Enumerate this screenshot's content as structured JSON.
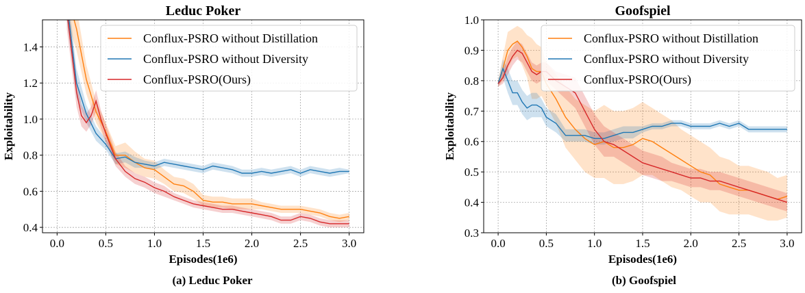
{
  "captions": [
    "(a) Leduc Poker",
    "(b) Goofspiel"
  ],
  "colors": {
    "orange": "#ff7f0e",
    "blue": "#1f77b4",
    "red": "#d62728"
  },
  "chart_data": [
    {
      "type": "line",
      "title": "Leduc Poker",
      "xlabel": "Episodes(1e6)",
      "ylabel": "Exploitability",
      "xlim": [
        -0.15,
        3.15
      ],
      "ylim": [
        0.37,
        1.55
      ],
      "xticks": [
        "0.0",
        "0.5",
        "1.0",
        "1.5",
        "2.0",
        "2.5",
        "3.0"
      ],
      "yticks": [
        "0.4",
        "0.6",
        "0.8",
        "1.0",
        "1.2",
        "1.4"
      ],
      "grid": true,
      "legend_position": "top-right",
      "series": [
        {
          "name": "Conflux-PSRO without Distillation",
          "color": "#ff7f0e",
          "x": [
            0.1,
            0.2,
            0.3,
            0.4,
            0.5,
            0.6,
            0.7,
            0.8,
            0.9,
            1.0,
            1.1,
            1.2,
            1.3,
            1.4,
            1.5,
            1.6,
            1.7,
            1.8,
            1.9,
            2.0,
            2.1,
            2.2,
            2.3,
            2.4,
            2.5,
            2.6,
            2.7,
            2.8,
            2.9,
            3.0
          ],
          "y": [
            1.7,
            1.5,
            1.22,
            1.04,
            0.93,
            0.8,
            0.8,
            0.76,
            0.73,
            0.72,
            0.68,
            0.64,
            0.63,
            0.6,
            0.55,
            0.54,
            0.54,
            0.53,
            0.53,
            0.53,
            0.52,
            0.51,
            0.5,
            0.5,
            0.5,
            0.49,
            0.48,
            0.46,
            0.45,
            0.46
          ],
          "band": [
            0.15,
            0.12,
            0.08,
            0.06,
            0.05,
            0.05,
            0.07,
            0.06,
            0.05,
            0.05,
            0.04,
            0.04,
            0.04,
            0.04,
            0.03,
            0.03,
            0.03,
            0.03,
            0.03,
            0.03,
            0.02,
            0.02,
            0.02,
            0.02,
            0.02,
            0.02,
            0.02,
            0.02,
            0.02,
            0.02
          ]
        },
        {
          "name": "Conflux-PSRO without Diversity",
          "color": "#1f77b4",
          "x": [
            0.1,
            0.2,
            0.3,
            0.4,
            0.5,
            0.6,
            0.7,
            0.8,
            0.9,
            1.0,
            1.1,
            1.2,
            1.3,
            1.4,
            1.5,
            1.6,
            1.7,
            1.8,
            1.9,
            2.0,
            2.1,
            2.2,
            2.3,
            2.4,
            2.5,
            2.6,
            2.7,
            2.8,
            2.9,
            3.0
          ],
          "y": [
            1.65,
            1.2,
            1.03,
            0.92,
            0.86,
            0.78,
            0.79,
            0.76,
            0.75,
            0.74,
            0.76,
            0.75,
            0.74,
            0.73,
            0.72,
            0.74,
            0.73,
            0.72,
            0.7,
            0.7,
            0.71,
            0.7,
            0.71,
            0.72,
            0.7,
            0.72,
            0.71,
            0.7,
            0.71,
            0.71
          ],
          "band": [
            0.1,
            0.08,
            0.05,
            0.04,
            0.03,
            0.03,
            0.03,
            0.03,
            0.02,
            0.02,
            0.02,
            0.02,
            0.02,
            0.02,
            0.02,
            0.02,
            0.02,
            0.02,
            0.02,
            0.02,
            0.02,
            0.02,
            0.02,
            0.02,
            0.02,
            0.02,
            0.02,
            0.02,
            0.02,
            0.01
          ]
        },
        {
          "name": "Conflux-PSRO(Ours)",
          "color": "#d62728",
          "x": [
            0.1,
            0.2,
            0.25,
            0.3,
            0.35,
            0.4,
            0.45,
            0.5,
            0.6,
            0.7,
            0.8,
            0.9,
            1.0,
            1.1,
            1.2,
            1.3,
            1.4,
            1.5,
            1.6,
            1.7,
            1.8,
            1.9,
            2.0,
            2.1,
            2.2,
            2.3,
            2.4,
            2.5,
            2.6,
            2.7,
            2.8,
            2.9,
            3.0
          ],
          "y": [
            1.6,
            1.15,
            1.02,
            0.98,
            1.02,
            1.1,
            1.0,
            0.92,
            0.78,
            0.71,
            0.67,
            0.65,
            0.62,
            0.6,
            0.57,
            0.55,
            0.53,
            0.52,
            0.51,
            0.5,
            0.5,
            0.49,
            0.48,
            0.47,
            0.46,
            0.44,
            0.44,
            0.46,
            0.45,
            0.43,
            0.42,
            0.42,
            0.42
          ],
          "band": [
            0.1,
            0.08,
            0.06,
            0.05,
            0.05,
            0.06,
            0.05,
            0.05,
            0.04,
            0.03,
            0.03,
            0.03,
            0.03,
            0.03,
            0.02,
            0.02,
            0.02,
            0.02,
            0.02,
            0.02,
            0.02,
            0.02,
            0.02,
            0.02,
            0.02,
            0.02,
            0.02,
            0.02,
            0.02,
            0.02,
            0.02,
            0.02,
            0.02
          ]
        }
      ]
    },
    {
      "type": "line",
      "title": "Goofspiel",
      "xlabel": "Episodes(1e6)",
      "ylabel": "Exploitability",
      "xlim": [
        -0.15,
        3.15
      ],
      "ylim": [
        0.3,
        1.0
      ],
      "xticks": [
        "0.0",
        "0.5",
        "1.0",
        "1.5",
        "2.0",
        "2.5",
        "3.0"
      ],
      "yticks": [
        "0.3",
        "0.4",
        "0.5",
        "0.6",
        "0.7",
        "0.8",
        "0.9",
        "1.0"
      ],
      "grid": true,
      "legend_position": "top-right",
      "series": [
        {
          "name": "Conflux-PSRO without Distillation",
          "color": "#ff7f0e",
          "x": [
            0.0,
            0.05,
            0.1,
            0.15,
            0.2,
            0.25,
            0.3,
            0.35,
            0.4,
            0.45,
            0.5,
            0.6,
            0.7,
            0.8,
            0.9,
            1.0,
            1.1,
            1.2,
            1.3,
            1.4,
            1.5,
            1.6,
            1.7,
            1.8,
            1.9,
            2.0,
            2.1,
            2.2,
            2.3,
            2.4,
            2.5,
            2.6,
            2.7,
            2.8,
            2.9,
            3.0
          ],
          "y": [
            0.79,
            0.84,
            0.9,
            0.92,
            0.93,
            0.91,
            0.88,
            0.84,
            0.83,
            0.83,
            0.79,
            0.74,
            0.68,
            0.64,
            0.61,
            0.59,
            0.6,
            0.58,
            0.58,
            0.59,
            0.61,
            0.6,
            0.58,
            0.56,
            0.54,
            0.52,
            0.5,
            0.49,
            0.46,
            0.45,
            0.44,
            0.44,
            0.43,
            0.42,
            0.41,
            0.42
          ],
          "band": [
            0.01,
            0.04,
            0.06,
            0.05,
            0.05,
            0.06,
            0.07,
            0.1,
            0.09,
            0.08,
            0.07,
            0.08,
            0.1,
            0.1,
            0.11,
            0.11,
            0.12,
            0.12,
            0.12,
            0.12,
            0.12,
            0.11,
            0.11,
            0.11,
            0.1,
            0.1,
            0.1,
            0.09,
            0.09,
            0.09,
            0.08,
            0.08,
            0.08,
            0.08,
            0.07,
            0.07
          ]
        },
        {
          "name": "Conflux-PSRO without Diversity",
          "color": "#1f77b4",
          "x": [
            0.0,
            0.05,
            0.1,
            0.15,
            0.2,
            0.25,
            0.3,
            0.35,
            0.4,
            0.45,
            0.5,
            0.6,
            0.7,
            0.8,
            0.9,
            1.0,
            1.1,
            1.2,
            1.3,
            1.4,
            1.5,
            1.6,
            1.7,
            1.8,
            1.9,
            2.0,
            2.1,
            2.2,
            2.3,
            2.4,
            2.5,
            2.6,
            2.7,
            2.8,
            2.9,
            3.0
          ],
          "y": [
            0.79,
            0.84,
            0.8,
            0.76,
            0.76,
            0.73,
            0.71,
            0.72,
            0.72,
            0.71,
            0.68,
            0.66,
            0.62,
            0.62,
            0.62,
            0.61,
            0.61,
            0.62,
            0.63,
            0.63,
            0.64,
            0.65,
            0.65,
            0.66,
            0.66,
            0.65,
            0.65,
            0.65,
            0.66,
            0.65,
            0.66,
            0.64,
            0.64,
            0.64,
            0.64,
            0.64
          ],
          "band": [
            0.01,
            0.03,
            0.04,
            0.04,
            0.04,
            0.04,
            0.04,
            0.04,
            0.04,
            0.03,
            0.03,
            0.03,
            0.02,
            0.02,
            0.02,
            0.02,
            0.02,
            0.02,
            0.02,
            0.02,
            0.01,
            0.01,
            0.01,
            0.01,
            0.01,
            0.01,
            0.01,
            0.01,
            0.01,
            0.01,
            0.01,
            0.01,
            0.01,
            0.01,
            0.01,
            0.01
          ]
        },
        {
          "name": "Conflux-PSRO(Ours)",
          "color": "#d62728",
          "x": [
            0.0,
            0.05,
            0.1,
            0.15,
            0.2,
            0.25,
            0.3,
            0.35,
            0.4,
            0.45,
            0.5,
            0.6,
            0.7,
            0.8,
            0.9,
            1.0,
            1.1,
            1.2,
            1.3,
            1.4,
            1.5,
            1.6,
            1.7,
            1.8,
            1.9,
            2.0,
            2.1,
            2.2,
            2.3,
            2.4,
            2.5,
            2.6,
            2.7,
            2.8,
            2.9,
            3.0
          ],
          "y": [
            0.79,
            0.81,
            0.85,
            0.88,
            0.9,
            0.89,
            0.86,
            0.83,
            0.82,
            0.83,
            0.83,
            0.8,
            0.78,
            0.76,
            0.7,
            0.64,
            0.6,
            0.59,
            0.57,
            0.55,
            0.53,
            0.52,
            0.51,
            0.5,
            0.49,
            0.48,
            0.48,
            0.47,
            0.47,
            0.46,
            0.45,
            0.44,
            0.43,
            0.42,
            0.41,
            0.4
          ],
          "band": [
            0.01,
            0.02,
            0.03,
            0.03,
            0.03,
            0.03,
            0.03,
            0.03,
            0.03,
            0.03,
            0.03,
            0.03,
            0.04,
            0.05,
            0.05,
            0.05,
            0.05,
            0.04,
            0.04,
            0.04,
            0.04,
            0.04,
            0.04,
            0.03,
            0.03,
            0.03,
            0.03,
            0.03,
            0.03,
            0.03,
            0.03,
            0.03,
            0.03,
            0.03,
            0.03,
            0.03
          ]
        }
      ]
    }
  ]
}
